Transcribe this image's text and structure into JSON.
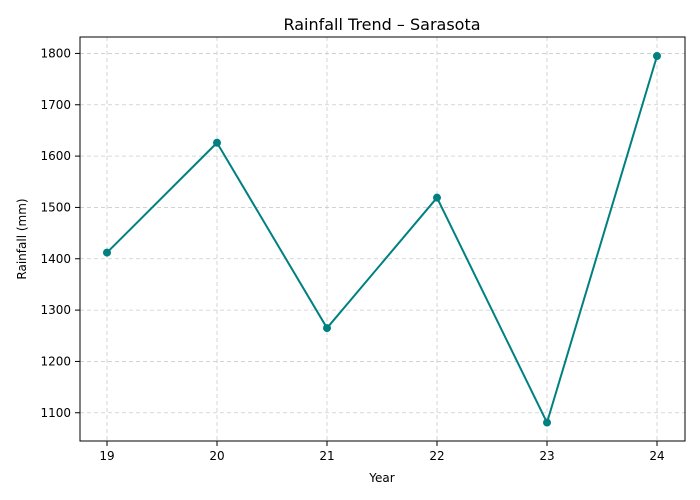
{
  "chart_data": {
    "type": "line",
    "title": "Rainfall Trend – Sarasota",
    "xlabel": "Year",
    "ylabel": "Rainfall (mm)",
    "categories": [
      "19",
      "20",
      "21",
      "22",
      "23",
      "24"
    ],
    "series": [
      {
        "values": [
          1412,
          1626,
          1265,
          1519,
          1081,
          1795
        ],
        "color": "#008080",
        "marker": "circle"
      }
    ],
    "ylim": [
      1045,
      1832
    ],
    "yticks": [
      1100,
      1200,
      1300,
      1400,
      1500,
      1600,
      1700,
      1800
    ],
    "grid": true,
    "legend": false
  }
}
